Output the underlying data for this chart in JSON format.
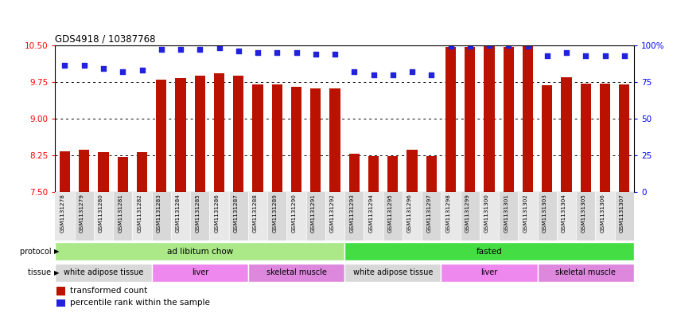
{
  "title": "GDS4918 / 10387768",
  "samples": [
    "GSM1131278",
    "GSM1131279",
    "GSM1131280",
    "GSM1131281",
    "GSM1131282",
    "GSM1131283",
    "GSM1131284",
    "GSM1131285",
    "GSM1131286",
    "GSM1131287",
    "GSM1131288",
    "GSM1131289",
    "GSM1131290",
    "GSM1131291",
    "GSM1131292",
    "GSM1131293",
    "GSM1131294",
    "GSM1131295",
    "GSM1131296",
    "GSM1131297",
    "GSM1131298",
    "GSM1131299",
    "GSM1131300",
    "GSM1131301",
    "GSM1131302",
    "GSM1131303",
    "GSM1131304",
    "GSM1131305",
    "GSM1131306",
    "GSM1131307"
  ],
  "bar_values": [
    8.33,
    8.37,
    8.32,
    8.22,
    8.32,
    9.8,
    9.82,
    9.87,
    9.92,
    9.87,
    9.7,
    9.7,
    9.65,
    9.62,
    9.62,
    8.28,
    8.24,
    8.24,
    8.36,
    8.24,
    10.46,
    10.46,
    10.47,
    10.46,
    10.47,
    9.68,
    9.85,
    9.72,
    9.72,
    9.7
  ],
  "percentile_values": [
    86,
    86,
    84,
    82,
    83,
    97,
    97,
    97,
    98,
    96,
    95,
    95,
    95,
    94,
    94,
    82,
    80,
    80,
    82,
    80,
    99,
    99,
    100,
    100,
    99,
    93,
    95,
    93,
    93,
    93
  ],
  "ylim_left": [
    7.5,
    10.5
  ],
  "ylim_right": [
    0,
    100
  ],
  "yticks_left": [
    7.5,
    8.25,
    9.0,
    9.75,
    10.5
  ],
  "yticks_right": [
    0,
    25,
    50,
    75,
    100
  ],
  "bar_color": "#bb1100",
  "dot_color": "#2222dd",
  "protocol_groups": [
    {
      "label": "ad libitum chow",
      "start": 0,
      "end": 14,
      "color": "#aae888"
    },
    {
      "label": "fasted",
      "start": 15,
      "end": 29,
      "color": "#44dd44"
    }
  ],
  "tissue_groups": [
    {
      "label": "white adipose tissue",
      "start": 0,
      "end": 4,
      "color": "#d8d8d8"
    },
    {
      "label": "liver",
      "start": 5,
      "end": 9,
      "color": "#ee88ee"
    },
    {
      "label": "skeletal muscle",
      "start": 10,
      "end": 14,
      "color": "#dd88dd"
    },
    {
      "label": "white adipose tissue",
      "start": 15,
      "end": 19,
      "color": "#d8d8d8"
    },
    {
      "label": "liver",
      "start": 20,
      "end": 24,
      "color": "#ee88ee"
    },
    {
      "label": "skeletal muscle",
      "start": 25,
      "end": 29,
      "color": "#dd88dd"
    }
  ],
  "legend_bar_label": "transformed count",
  "legend_dot_label": "percentile rank within the sample",
  "bar_width": 0.55,
  "background_color": "#ffffff"
}
